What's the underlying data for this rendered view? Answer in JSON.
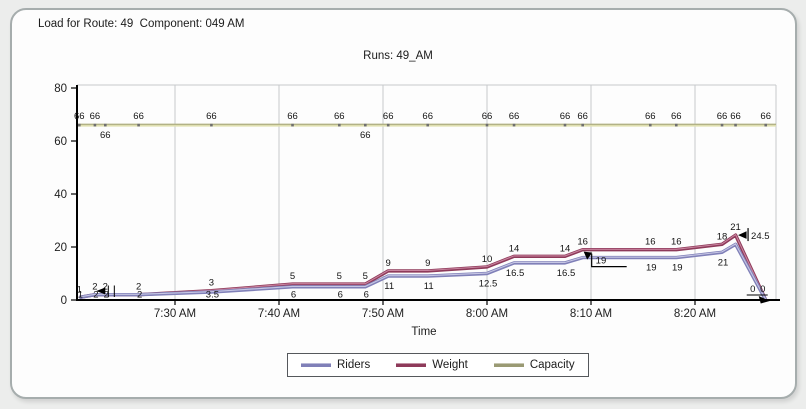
{
  "page": {
    "title": "Load for Route: 49  Component: 049 AM"
  },
  "chart_data": {
    "type": "line",
    "title": "Runs: 49_AM",
    "xlabel": "Time",
    "grid": "vertical-only",
    "legend_position": "bottom-center",
    "ylim": [
      0,
      80
    ],
    "y_ticks": [
      0,
      20,
      40,
      60,
      80
    ],
    "x_ticks": [
      {
        "label": "7:30 AM",
        "minutes": 450
      },
      {
        "label": "7:40 AM",
        "minutes": 460
      },
      {
        "label": "7:50 AM",
        "minutes": 470
      },
      {
        "label": "8:00 AM",
        "minutes": 480
      },
      {
        "label": "8:10 AM",
        "minutes": 490
      },
      {
        "label": "8:20 AM",
        "minutes": 500
      }
    ],
    "series": [
      {
        "name": "Riders",
        "color": "#8080b8"
      },
      {
        "name": "Weight",
        "color": "#8e3a5a"
      },
      {
        "name": "Capacity",
        "color": "#9a9a74",
        "constant_value": 66
      }
    ],
    "points": [
      {
        "time": "7:21 AM",
        "minutes": 440.8,
        "riders": 1,
        "weight": 1,
        "capacity": 66
      },
      {
        "time": "7:22 AM",
        "minutes": 442.3,
        "riders": 2,
        "weight": 2,
        "capacity": 66
      },
      {
        "time": "7:23 AM",
        "minutes": 443.3,
        "riders": 2,
        "weight": 2,
        "capacity": 66,
        "cap_side": "below"
      },
      {
        "time": "7:27 AM",
        "minutes": 446.5,
        "riders": 2,
        "weight": 2,
        "capacity": 66
      },
      {
        "time": "7:34 AM",
        "minutes": 453.5,
        "riders": 3,
        "weight": 3.5,
        "capacity": 66
      },
      {
        "time": "7:41 AM",
        "minutes": 461.3,
        "riders": 5,
        "weight": 6,
        "capacity": 66
      },
      {
        "time": "7:46 AM",
        "minutes": 465.8,
        "riders": 5,
        "weight": 6,
        "capacity": 66
      },
      {
        "time": "7:48 AM",
        "minutes": 468.3,
        "riders": 5,
        "weight": 6,
        "capacity": 66,
        "cap_side": "below"
      },
      {
        "time": "7:51 AM",
        "minutes": 470.5,
        "riders": 9,
        "weight": 11,
        "capacity": 66
      },
      {
        "time": "7:54 AM",
        "minutes": 474.3,
        "riders": 9,
        "weight": 11,
        "capacity": 66
      },
      {
        "time": "8:00 AM",
        "minutes": 480.0,
        "riders": 10,
        "weight": 12.5,
        "capacity": 66
      },
      {
        "time": "8:03 AM",
        "minutes": 482.6,
        "riders": 14,
        "weight": 16.5,
        "capacity": 66
      },
      {
        "time": "8:08 AM",
        "minutes": 487.5,
        "riders": 14,
        "weight": 16.5,
        "capacity": 66
      },
      {
        "time": "8:09 AM",
        "minutes": 489.2,
        "riders": 16,
        "weight": 19,
        "capacity": 66,
        "hide_weight_label": true
      },
      {
        "time": "8:16 AM",
        "minutes": 495.7,
        "riders": 16,
        "weight": 19,
        "capacity": 66
      },
      {
        "time": "8:18 AM",
        "minutes": 498.2,
        "riders": 16,
        "weight": 19,
        "capacity": 66
      },
      {
        "time": "8:23 AM",
        "minutes": 502.6,
        "riders": 18,
        "weight": 21,
        "capacity": 66
      },
      {
        "time": "8:24 AM",
        "minutes": 503.9,
        "riders": 21,
        "weight": 24.5,
        "capacity": 66,
        "hide_weight_label": true
      },
      {
        "time": "8:27 AM",
        "minutes": 506.8,
        "riders": 0,
        "weight": 0,
        "capacity": 66,
        "hide_weight_label": true,
        "hide_riders_label": true
      }
    ],
    "annotations": [
      {
        "kind": "arrow-bars",
        "point": 2,
        "text": ""
      },
      {
        "kind": "arrow-box",
        "point": 13,
        "text": "19"
      },
      {
        "kind": "arrow-bar",
        "point": 17,
        "text": "24.5"
      },
      {
        "kind": "zero-end",
        "point": 18,
        "text": "0 0"
      }
    ]
  }
}
